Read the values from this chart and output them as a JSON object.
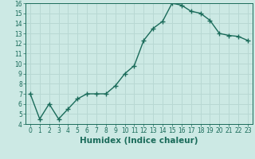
{
  "x": [
    0,
    1,
    2,
    3,
    4,
    5,
    6,
    7,
    8,
    9,
    10,
    11,
    12,
    13,
    14,
    15,
    16,
    17,
    18,
    19,
    20,
    21,
    22,
    23
  ],
  "y": [
    7.0,
    4.5,
    6.0,
    4.5,
    5.5,
    6.5,
    7.0,
    7.0,
    7.0,
    7.8,
    9.0,
    9.8,
    12.3,
    13.5,
    14.2,
    16.0,
    15.8,
    15.2,
    15.0,
    14.3,
    13.0,
    12.8,
    12.7,
    12.3
  ],
  "line_color": "#1a6b5a",
  "marker": "+",
  "marker_size": 4,
  "marker_linewidth": 1.0,
  "bg_color": "#cce9e4",
  "grid_color": "#b8d8d3",
  "xlabel": "Humidex (Indice chaleur)",
  "xlim": [
    -0.5,
    23.5
  ],
  "ylim": [
    4,
    16
  ],
  "xticks": [
    0,
    1,
    2,
    3,
    4,
    5,
    6,
    7,
    8,
    9,
    10,
    11,
    12,
    13,
    14,
    15,
    16,
    17,
    18,
    19,
    20,
    21,
    22,
    23
  ],
  "yticks": [
    4,
    5,
    6,
    7,
    8,
    9,
    10,
    11,
    12,
    13,
    14,
    15,
    16
  ],
  "tick_color": "#1a6b5a",
  "tick_fontsize": 5.5,
  "xlabel_fontsize": 7.5,
  "linewidth": 1.0
}
